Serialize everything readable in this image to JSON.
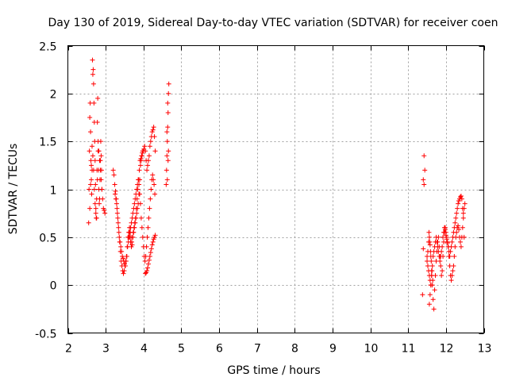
{
  "chart_data": {
    "type": "scatter",
    "title": "Day 130 of 2019, Sidereal Day-to-day VTEC variation (SDTVAR) for receiver coen",
    "xlabel": "GPS time / hours",
    "ylabel": "SDTVAR / TECUs",
    "xlim": [
      2,
      13
    ],
    "ylim": [
      -0.5,
      2.5
    ],
    "xticks": [
      "2",
      "3",
      "4",
      "5",
      "6",
      "7",
      "8",
      "9",
      "10",
      "11",
      "12",
      "13"
    ],
    "yticks": [
      "-0.5",
      "0",
      "0.5",
      "1",
      "1.5",
      "2",
      "2.5"
    ],
    "grid": true,
    "marker": "+",
    "color": "#ff0000",
    "series": [
      {
        "name": "SDTVAR",
        "x": [
          2.55,
          2.56,
          2.57,
          2.58,
          2.59,
          2.6,
          2.61,
          2.62,
          2.63,
          2.64,
          2.65,
          2.66,
          2.67,
          2.68,
          2.69,
          2.7,
          2.71,
          2.72,
          2.73,
          2.74,
          2.75,
          2.76,
          2.77,
          2.78,
          2.79,
          2.8,
          2.81,
          2.82,
          2.83,
          2.84,
          2.85,
          2.86,
          2.87,
          2.88,
          2.89,
          2.9,
          2.92,
          2.94,
          2.96,
          2.98,
          2.58,
          2.6,
          2.62,
          2.64,
          2.66,
          2.68,
          2.7,
          2.72,
          2.74,
          2.76,
          2.78,
          2.8,
          2.82,
          2.84,
          2.86,
          2.88,
          2.9,
          3.2,
          3.22,
          3.24,
          3.26,
          3.28,
          3.3,
          3.32,
          3.34,
          3.36,
          3.38,
          3.4,
          3.42,
          3.44,
          3.46,
          3.48,
          3.5,
          3.52,
          3.54,
          3.56,
          3.58,
          3.6,
          3.62,
          3.64,
          3.66,
          3.68,
          3.7,
          3.72,
          3.74,
          3.76,
          3.78,
          3.8,
          3.82,
          3.84,
          3.86,
          3.88,
          3.9,
          3.92,
          3.94,
          3.96,
          3.98,
          3.25,
          3.27,
          3.29,
          3.31,
          3.33,
          3.35,
          3.37,
          3.39,
          3.41,
          3.43,
          3.45,
          3.47,
          3.49,
          3.51,
          3.53,
          3.55,
          3.57,
          3.59,
          3.61,
          3.63,
          3.65,
          3.67,
          3.69,
          3.71,
          3.73,
          3.75,
          3.77,
          3.79,
          3.81,
          3.83,
          3.85,
          3.87,
          3.89,
          3.91,
          3.93,
          3.95,
          3.97,
          3.99,
          4.01,
          4.03,
          4.05,
          4.07,
          4.09,
          4.11,
          4.13,
          4.15,
          4.17,
          4.19,
          4.21,
          4.23,
          4.25,
          4.27,
          4.29,
          4.31,
          3.6,
          3.62,
          3.64,
          3.66,
          3.68,
          3.7,
          3.72,
          3.74,
          3.76,
          3.78,
          3.8,
          3.82,
          3.84,
          3.86,
          3.88,
          3.9,
          3.92,
          3.94,
          3.96,
          3.98,
          4.0,
          4.02,
          4.04,
          4.06,
          4.08,
          4.1,
          4.12,
          4.14,
          4.16,
          4.18,
          4.2,
          4.22,
          4.24,
          4.26,
          4.28,
          4.3,
          4.05,
          4.07,
          4.09,
          4.11,
          4.13,
          4.15,
          4.17,
          4.19,
          4.21,
          4.23,
          4.25,
          4.27,
          4.29,
          4.31,
          4.6,
          4.61,
          4.62,
          4.63,
          4.64,
          4.65,
          4.66,
          4.67,
          4.62,
          4.64,
          4.66,
          4.63,
          4.65,
          11.4,
          11.38,
          11.42,
          11.44,
          11.4,
          11.42,
          11.5,
          11.52,
          11.54,
          11.56,
          11.58,
          11.6,
          11.62,
          11.64,
          11.66,
          11.68,
          11.7,
          11.72,
          11.74,
          11.76,
          11.78,
          11.8,
          11.82,
          11.84,
          11.86,
          11.88,
          11.9,
          11.92,
          11.94,
          11.96,
          11.98,
          12.0,
          12.02,
          12.04,
          12.06,
          12.08,
          12.1,
          12.12,
          12.14,
          12.16,
          12.18,
          12.2,
          12.22,
          12.24,
          12.26,
          12.28,
          12.3,
          12.32,
          12.34,
          12.36,
          12.38,
          12.4,
          12.42,
          12.44,
          12.46,
          12.48,
          12.5,
          11.5,
          11.52,
          11.54,
          11.56,
          11.58,
          11.6,
          11.62,
          11.64,
          11.66,
          11.68,
          11.7,
          11.72,
          11.74,
          11.76,
          11.78,
          11.8,
          11.82,
          11.84,
          11.86,
          11.88,
          11.9,
          11.92,
          11.94,
          11.96,
          11.98,
          12.0,
          12.02,
          12.04,
          12.06,
          12.08,
          12.1,
          12.12,
          12.14,
          12.16,
          12.18,
          12.2,
          12.22,
          12.24,
          12.26,
          12.28,
          12.3,
          12.32,
          12.34,
          12.36,
          12.38,
          12.4,
          12.42,
          12.44,
          12.46,
          12.48,
          11.55,
          11.57,
          11.59,
          11.61,
          11.63,
          11.65,
          11.56,
          11.58,
          11.6,
          11.62
        ],
        "y": [
          0.65,
          1.0,
          1.4,
          1.75,
          1.9,
          1.6,
          1.3,
          1.1,
          0.95,
          1.2,
          2.35,
          2.2,
          2.25,
          2.1,
          1.9,
          1.7,
          1.5,
          1.3,
          1.05,
          0.8,
          0.7,
          0.9,
          1.2,
          1.7,
          1.95,
          1.4,
          1.2,
          1.0,
          0.85,
          0.9,
          1.1,
          1.3,
          1.5,
          1.35,
          1.2,
          1.0,
          0.9,
          0.8,
          0.78,
          0.75,
          0.8,
          1.05,
          1.25,
          1.45,
          1.35,
          1.2,
          1.0,
          0.85,
          0.75,
          0.7,
          1.1,
          1.5,
          1.4,
          1.3,
          1.2,
          1.1,
          1.0,
          1.2,
          1.15,
          1.05,
          0.98,
          0.9,
          0.8,
          0.7,
          0.6,
          0.5,
          0.45,
          0.4,
          0.35,
          0.3,
          0.28,
          0.25,
          0.22,
          0.2,
          0.25,
          0.3,
          0.4,
          0.5,
          0.55,
          0.5,
          0.45,
          0.4,
          0.42,
          0.5,
          0.55,
          0.6,
          0.65,
          0.7,
          0.75,
          0.8,
          0.85,
          0.95,
          1.1,
          1.25,
          1.3,
          1.35,
          1.4,
          0.95,
          0.9,
          0.85,
          0.75,
          0.65,
          0.55,
          0.45,
          0.35,
          0.25,
          0.2,
          0.15,
          0.12,
          0.15,
          0.2,
          0.25,
          0.3,
          0.4,
          0.5,
          0.55,
          0.6,
          0.55,
          0.5,
          0.45,
          0.5,
          0.55,
          0.6,
          0.65,
          0.7,
          0.8,
          0.9,
          1.0,
          1.1,
          1.2,
          1.3,
          1.32,
          1.35,
          1.38,
          1.4,
          1.42,
          1.45,
          1.4,
          1.3,
          1.2,
          1.25,
          1.3,
          1.35,
          1.45,
          1.5,
          1.55,
          1.6,
          1.62,
          1.65,
          1.55,
          1.4,
          0.45,
          0.5,
          0.55,
          0.6,
          0.65,
          0.7,
          0.75,
          0.8,
          0.85,
          0.9,
          0.95,
          1.0,
          1.05,
          1.1,
          1.05,
          0.95,
          0.85,
          0.7,
          0.6,
          0.5,
          0.4,
          0.3,
          0.25,
          0.3,
          0.4,
          0.5,
          0.6,
          0.7,
          0.8,
          0.9,
          1.0,
          1.1,
          1.15,
          1.1,
          1.05,
          0.95,
          0.12,
          0.13,
          0.15,
          0.18,
          0.22,
          0.26,
          0.3,
          0.34,
          0.38,
          0.42,
          0.45,
          0.48,
          0.5,
          0.52,
          1.05,
          1.2,
          1.35,
          1.5,
          1.65,
          1.8,
          2.0,
          2.1,
          1.6,
          1.9,
          1.4,
          1.1,
          1.3,
          0.38,
          -0.1,
          1.35,
          1.2,
          1.1,
          1.05,
          0.3,
          0.35,
          0.45,
          0.5,
          0.42,
          0.3,
          0.15,
          0.0,
          -0.15,
          -0.25,
          -0.05,
          0.1,
          0.25,
          0.35,
          0.45,
          0.5,
          0.4,
          0.3,
          0.2,
          0.1,
          0.15,
          0.3,
          0.45,
          0.55,
          0.6,
          0.55,
          0.5,
          0.45,
          0.4,
          0.3,
          0.2,
          0.1,
          0.05,
          0.1,
          0.15,
          0.2,
          0.3,
          0.4,
          0.5,
          0.55,
          0.6,
          0.62,
          0.58,
          0.5,
          0.45,
          0.4,
          0.5,
          0.6,
          0.7,
          0.8,
          0.85,
          0.25,
          0.2,
          0.15,
          0.1,
          0.05,
          0.0,
          0.1,
          0.2,
          0.3,
          0.35,
          0.4,
          0.45,
          0.5,
          0.45,
          0.4,
          0.35,
          0.3,
          0.25,
          0.3,
          0.35,
          0.4,
          0.5,
          0.55,
          0.6,
          0.58,
          0.52,
          0.48,
          0.44,
          0.4,
          0.35,
          0.3,
          0.35,
          0.4,
          0.45,
          0.5,
          0.55,
          0.6,
          0.65,
          0.7,
          0.75,
          0.8,
          0.85,
          0.88,
          0.9,
          0.92,
          0.93,
          0.9,
          0.8,
          0.75,
          0.5,
          0.55,
          0.45,
          0.35,
          0.25,
          0.15,
          0.05,
          -0.2,
          -0.1,
          0.0,
          0.1
        ]
      }
    ]
  }
}
